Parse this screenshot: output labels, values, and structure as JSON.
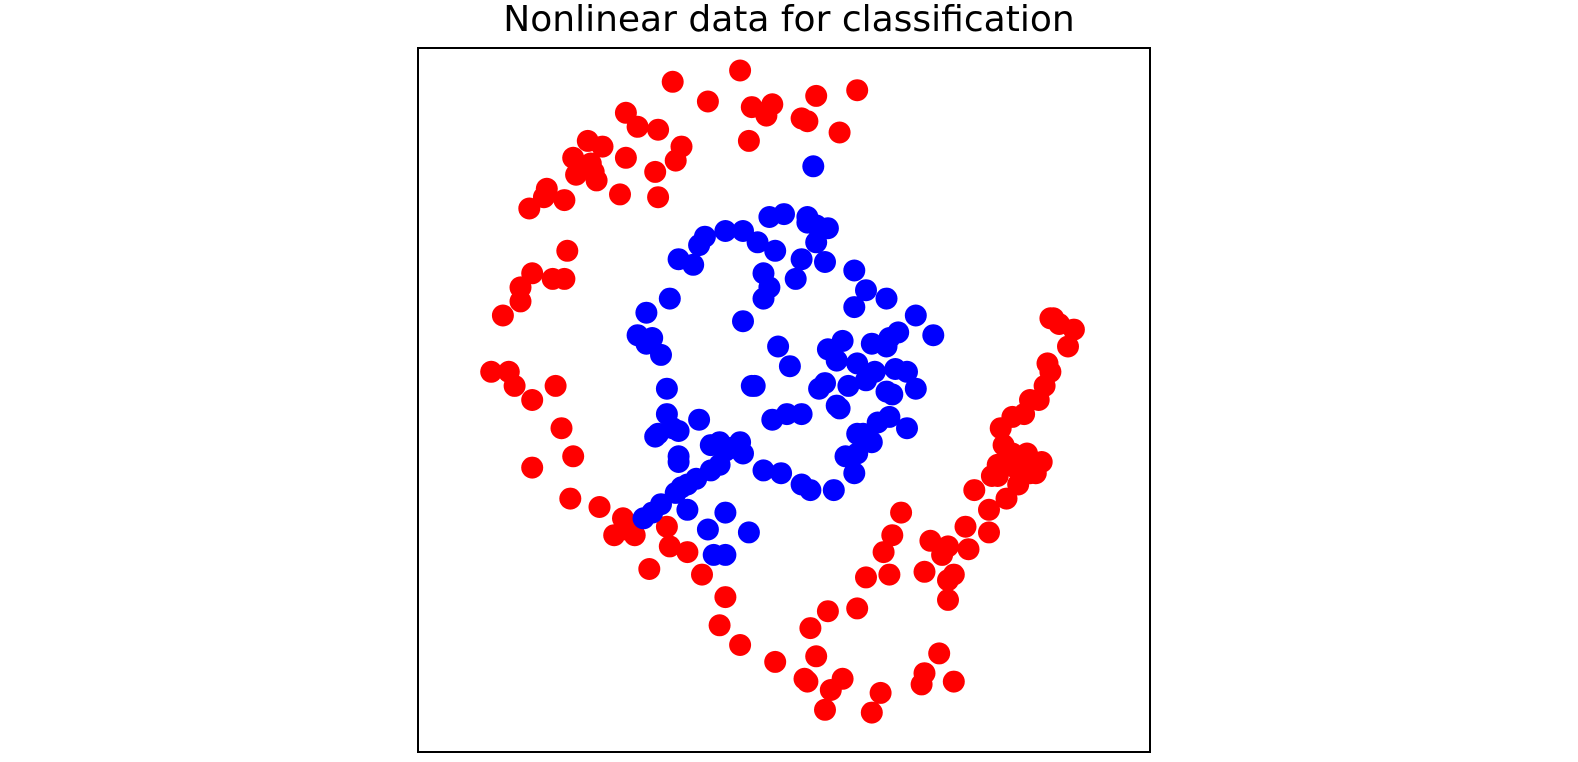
{
  "colors": {
    "class_outer": "#ff0000",
    "class_inner": "#0000ff",
    "frame": "#000000",
    "background": "#ffffff"
  },
  "chart_data": {
    "type": "scatter",
    "title": "Nonlinear data for classification",
    "xlabel": "",
    "ylabel": "",
    "xlim": [
      -1.25,
      1.25
    ],
    "ylim": [
      -1.25,
      1.25
    ],
    "grid": false,
    "axes_ticks": false,
    "legend": null,
    "series": [
      {
        "color": "#ff0000",
        "x": [
          -0.38,
          -0.15,
          -0.26,
          -0.06,
          0.06,
          0.11,
          0.25,
          0.08,
          0.19,
          -0.11,
          -0.04,
          -0.12,
          -0.43,
          -0.5,
          -0.54,
          -0.62,
          -0.67,
          -0.72,
          -0.54,
          -0.65,
          -0.71,
          -0.66,
          -0.81,
          -0.64,
          -0.56,
          -0.44,
          -0.37,
          -0.35,
          -0.43,
          -0.87,
          -0.82,
          -0.75,
          -0.74,
          -0.79,
          -0.86,
          -0.75,
          -0.9,
          -0.9,
          -0.96,
          -1.0,
          -0.94,
          -0.92,
          -0.86,
          -0.78,
          -0.76,
          -0.72,
          -0.86,
          -0.73,
          -0.63,
          -0.55,
          -0.54,
          -0.58,
          -0.51,
          -0.4,
          -0.39,
          -0.33,
          -0.46,
          -0.28,
          -0.2,
          -0.22,
          -0.15,
          -0.03,
          0.07,
          0.08,
          0.11,
          0.09,
          0.15,
          0.25,
          0.28,
          0.36,
          0.34,
          0.4,
          0.37,
          0.5,
          0.56,
          0.54,
          0.48,
          0.58,
          0.62,
          0.65,
          0.73,
          0.71,
          0.86,
          0.83,
          0.82,
          0.87,
          0.89,
          0.91,
          0.97,
          0.94,
          0.91,
          0.92,
          0.99,
          0.9,
          0.84,
          0.78,
          0.74,
          0.75,
          0.78,
          0.79,
          0.8,
          0.84,
          0.88,
          0.73,
          0.76,
          0.63,
          0.7,
          0.7,
          0.56,
          0.56,
          0.53,
          0.58,
          0.48,
          0.47,
          0.33,
          0.3,
          0.16,
          0.2,
          0.14
        ],
        "y": [
          1.13,
          1.17,
          1.06,
          1.01,
          1.0,
          1.08,
          1.1,
          0.99,
          0.95,
          1.04,
          1.05,
          0.92,
          0.96,
          0.97,
          1.02,
          0.9,
          0.92,
          0.86,
          0.86,
          0.81,
          0.8,
          0.84,
          0.75,
          0.78,
          0.73,
          0.81,
          0.85,
          0.9,
          0.72,
          0.68,
          0.72,
          0.71,
          0.53,
          0.43,
          0.45,
          0.43,
          0.4,
          0.35,
          0.3,
          0.1,
          0.1,
          0.05,
          0.0,
          0.05,
          -0.1,
          -0.2,
          -0.24,
          -0.35,
          -0.38,
          -0.42,
          -0.46,
          -0.48,
          -0.48,
          -0.45,
          -0.52,
          -0.54,
          -0.6,
          -0.62,
          -0.7,
          -0.8,
          -0.87,
          -0.93,
          -0.99,
          -1.0,
          -0.91,
          -0.81,
          -0.75,
          -0.74,
          -0.63,
          -0.62,
          -0.54,
          -0.4,
          -0.48,
          -0.5,
          -0.52,
          -0.55,
          -0.61,
          -0.62,
          -0.45,
          -0.32,
          -0.23,
          -0.27,
          -0.26,
          -0.19,
          -0.05,
          0.0,
          0.05,
          0.1,
          0.19,
          0.27,
          0.29,
          0.29,
          0.25,
          0.13,
          0.0,
          -0.06,
          -0.1,
          -0.16,
          -0.19,
          -0.24,
          -0.3,
          -0.26,
          -0.22,
          -0.27,
          -0.35,
          -0.53,
          -0.47,
          -0.39,
          -0.64,
          -0.71,
          -0.9,
          -1.0,
          -0.97,
          -1.01,
          -1.04,
          -1.11,
          -1.03,
          -0.99,
          -1.1
        ]
      },
      {
        "color": "#0000ff",
        "x": [
          0.1,
          0.0,
          -0.14,
          -0.05,
          -0.2,
          -0.27,
          -0.29,
          -0.31,
          -0.36,
          -0.39,
          -0.47,
          -0.5,
          -0.47,
          -0.45,
          -0.42,
          -0.4,
          -0.4,
          -0.38,
          -0.43,
          -0.36,
          -0.36,
          -0.35,
          -0.33,
          -0.2,
          -0.26,
          -0.12,
          -0.24,
          -0.2,
          -0.25,
          -0.22,
          -0.1,
          -0.14,
          -0.07,
          -0.07,
          -0.09,
          -0.03,
          0.04,
          0.06,
          0.08,
          0.15,
          0.11,
          0.08,
          0.11,
          0.24,
          0.28,
          0.35,
          0.39,
          0.45,
          0.51,
          0.36,
          0.3,
          0.25,
          0.2,
          0.15,
          0.12,
          0.18,
          0.22,
          0.28,
          0.31,
          0.35,
          0.38,
          0.42,
          0.37,
          0.45,
          0.42,
          0.3,
          0.25,
          0.19,
          0.06,
          0.01,
          -0.04,
          -0.15,
          -0.2,
          -0.22,
          -0.3,
          -0.33,
          -0.37,
          -0.42,
          -0.45,
          -0.48,
          -0.36,
          -0.29,
          -0.25,
          -0.18,
          -0.14,
          -0.07,
          -0.01,
          0.06,
          0.09,
          0.17,
          0.24,
          0.25,
          0.27,
          0.32,
          0.35,
          0.36,
          -0.44,
          -0.11,
          0.14,
          -0.05,
          -0.02,
          0.02,
          0.18,
          0.21,
          0.24,
          0.14
        ],
        "y": [
          0.83,
          0.66,
          0.6,
          0.65,
          0.6,
          0.58,
          0.55,
          0.48,
          0.5,
          0.36,
          0.31,
          0.23,
          0.2,
          0.22,
          0.16,
          0.04,
          -0.05,
          -0.1,
          -0.12,
          -0.2,
          -0.22,
          -0.31,
          -0.39,
          -0.4,
          -0.46,
          -0.47,
          -0.55,
          -0.55,
          -0.25,
          -0.15,
          0.05,
          0.28,
          0.36,
          0.45,
          0.56,
          0.53,
          0.43,
          0.5,
          0.63,
          0.61,
          0.56,
          0.65,
          0.62,
          0.46,
          0.39,
          0.36,
          0.24,
          0.3,
          0.23,
          0.22,
          0.2,
          0.13,
          0.21,
          0.18,
          0.04,
          -0.02,
          0.05,
          0.07,
          0.1,
          0.19,
          0.11,
          0.1,
          0.02,
          0.04,
          -0.1,
          -0.15,
          -0.12,
          -0.03,
          -0.05,
          -0.05,
          -0.07,
          -0.15,
          -0.18,
          -0.23,
          -0.28,
          -0.3,
          -0.33,
          -0.37,
          -0.4,
          -0.42,
          -0.11,
          -0.07,
          -0.16,
          -0.17,
          -0.19,
          -0.25,
          -0.26,
          -0.3,
          -0.32,
          -0.32,
          -0.26,
          -0.19,
          -0.12,
          -0.08,
          0.03,
          -0.06,
          -0.13,
          0.05,
          0.06,
          0.4,
          0.19,
          0.12,
          0.14,
          -0.2,
          0.33,
          0.49
        ]
      }
    ]
  }
}
